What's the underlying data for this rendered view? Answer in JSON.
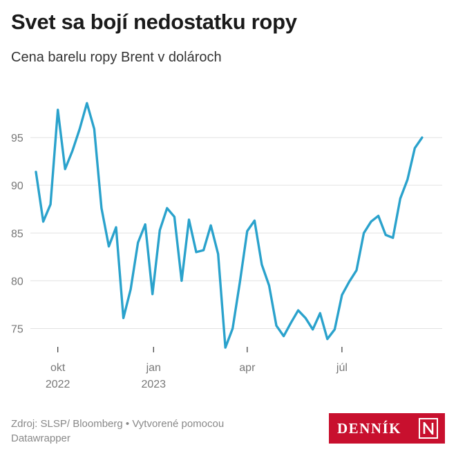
{
  "title": "Svet sa bojí nedostatku ropy",
  "subtitle": "Cena barelu ropy Brent v dolároch",
  "footer": {
    "source": "Zdroj: SLSP/ Bloomberg • Vytvorené pomocou Datawrapper"
  },
  "logo": {
    "text": "DENNÍK",
    "mark": "N"
  },
  "colors": {
    "line": "#2aa2cc",
    "grid": "#e2e2e2",
    "axis_text": "#777777",
    "logo_bg": "#c8102e"
  },
  "chart_data": {
    "type": "line",
    "title": "Svet sa bojí nedostatku ropy",
    "subtitle": "Cena barelu ropy Brent v dolároch",
    "xlabel": "",
    "ylabel": "",
    "ylim": [
      72.5,
      100
    ],
    "xlim": [
      "2022-09-06",
      "2023-09-30"
    ],
    "yticks": [
      75,
      80,
      85,
      90,
      95
    ],
    "xticks": [
      {
        "date": "2022-10-01",
        "label": "okt",
        "year": "2022"
      },
      {
        "date": "2023-01-01",
        "label": "jan",
        "year": "2023"
      },
      {
        "date": "2023-04-01",
        "label": "apr",
        "year": ""
      },
      {
        "date": "2023-07-01",
        "label": "júl",
        "year": ""
      }
    ],
    "grid": true,
    "series": [
      {
        "x": [
          "2022-09-10",
          "2022-09-17",
          "2022-09-24",
          "2022-10-01",
          "2022-10-08",
          "2022-10-15",
          "2022-10-22",
          "2022-10-29",
          "2022-11-05",
          "2022-11-12",
          "2022-11-19",
          "2022-11-26",
          "2022-12-03",
          "2022-12-10",
          "2022-12-17",
          "2022-12-24",
          "2022-12-31",
          "2023-01-07",
          "2023-01-14",
          "2023-01-21",
          "2023-01-28",
          "2023-02-04",
          "2023-02-11",
          "2023-02-18",
          "2023-02-25",
          "2023-03-04",
          "2023-03-11",
          "2023-03-18",
          "2023-03-25",
          "2023-04-01",
          "2023-04-08",
          "2023-04-15",
          "2023-04-22",
          "2023-04-29",
          "2023-05-06",
          "2023-05-13",
          "2023-05-20",
          "2023-05-27",
          "2023-06-03",
          "2023-06-10",
          "2023-06-17",
          "2023-06-24",
          "2023-07-01",
          "2023-07-08",
          "2023-07-15",
          "2023-07-22",
          "2023-07-29",
          "2023-08-05",
          "2023-08-12",
          "2023-08-19",
          "2023-08-26",
          "2023-09-02",
          "2023-09-09",
          "2023-09-16"
        ],
        "values": [
          91.4,
          86.2,
          88.0,
          97.9,
          91.7,
          93.6,
          95.9,
          98.6,
          95.9,
          87.6,
          83.6,
          85.6,
          76.1,
          79.1,
          84.0,
          85.9,
          78.6,
          85.3,
          87.6,
          86.7,
          80.0,
          86.4,
          83.0,
          83.2,
          85.8,
          82.8,
          73.0,
          75.0,
          79.9,
          85.2,
          86.3,
          81.7,
          79.5,
          75.3,
          74.2,
          75.6,
          76.9,
          76.1,
          74.9,
          76.6,
          73.9,
          74.9,
          78.5,
          79.9,
          81.1,
          85.0,
          86.2,
          86.8,
          84.8,
          84.5,
          88.6,
          90.6,
          93.9,
          95.0
        ]
      }
    ]
  }
}
